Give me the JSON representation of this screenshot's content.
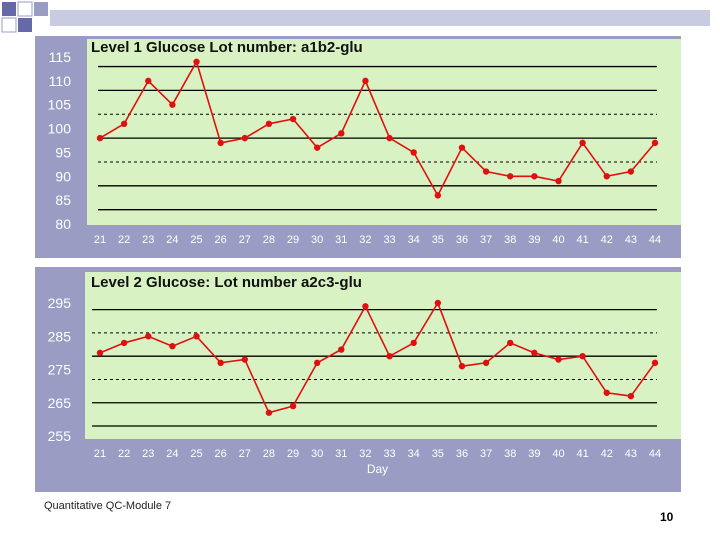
{
  "footer": {
    "text": "Quantitative QC-Module 7"
  },
  "page": {
    "number": "10"
  },
  "colors": {
    "panel": "#9a9cc4",
    "plot": "#d9f2c4",
    "series": "#e01010",
    "line": "#000000"
  },
  "chart_data": [
    {
      "type": "line",
      "title": "Level 1 Glucose Lot number: a1b2-glu",
      "xlabel": "",
      "ylabel": "",
      "x": [
        21,
        22,
        23,
        24,
        25,
        26,
        27,
        28,
        29,
        30,
        31,
        32,
        33,
        34,
        35,
        36,
        37,
        38,
        39,
        40,
        41,
        42,
        43,
        44
      ],
      "series": [
        {
          "values": [
            98,
            101,
            110,
            105,
            114,
            97,
            98,
            101,
            102,
            96,
            99,
            110,
            98,
            95,
            86,
            96,
            91,
            90,
            90,
            89,
            97,
            90,
            91,
            97
          ]
        }
      ],
      "ylim": [
        80,
        115
      ],
      "yticks": [
        80,
        85,
        90,
        95,
        100,
        105,
        110,
        115
      ],
      "solid_lines": [
        83,
        88,
        98,
        108,
        113
      ],
      "dashed_lines": [
        93,
        103
      ],
      "grid": false
    },
    {
      "type": "line",
      "title": "Level 2 Glucose: Lot number a2c3-glu",
      "xlabel": "Day",
      "ylabel": "",
      "x": [
        21,
        22,
        23,
        24,
        25,
        26,
        27,
        28,
        29,
        30,
        31,
        32,
        33,
        34,
        35,
        36,
        37,
        38,
        39,
        40,
        41,
        42,
        43,
        44
      ],
      "series": [
        {
          "values": [
            280,
            283,
            285,
            282,
            285,
            277,
            278,
            262,
            264,
            277,
            281,
            294,
            279,
            283,
            295,
            276,
            277,
            283,
            280,
            278,
            279,
            268,
            267,
            277
          ]
        }
      ],
      "ylim": [
        255,
        295
      ],
      "yticks": [
        255,
        265,
        275,
        285,
        295
      ],
      "solid_lines": [
        258,
        265,
        279,
        293
      ],
      "dashed_lines": [
        272,
        286
      ],
      "grid": false
    }
  ]
}
